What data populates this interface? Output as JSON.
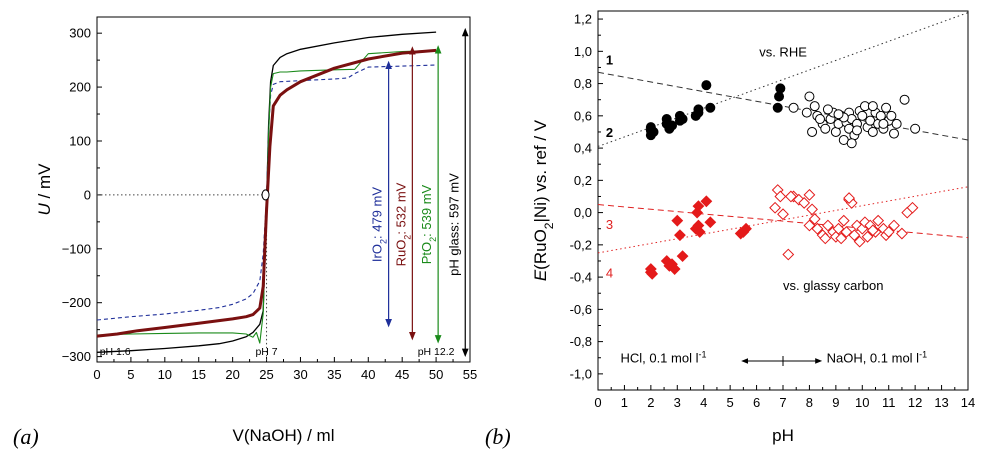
{
  "chart_data": [
    {
      "type": "line",
      "panel_label": "(a)",
      "xlabel": "V(NaOH) / ml",
      "ylabel_main": "U",
      "ylabel_unit": " / mV",
      "xlim": [
        0,
        55
      ],
      "ylim": [
        -310,
        330
      ],
      "xticks": [
        0,
        5,
        10,
        15,
        20,
        25,
        30,
        35,
        40,
        45,
        50,
        55
      ],
      "yticks": [
        -300,
        -200,
        -100,
        0,
        100,
        200,
        300
      ],
      "ytick_labels": [
        "−300",
        "−200",
        "−100",
        "0",
        "100",
        "200",
        "300"
      ],
      "annotations": [
        {
          "text": "pH 1.6",
          "x": 0.4,
          "y": -290
        },
        {
          "text": "pH 7",
          "x": 25,
          "y": -290
        },
        {
          "text": "pH 12.2",
          "x": 50,
          "y": -290
        }
      ],
      "dotted_reference": {
        "y": 0,
        "x_from": 0,
        "x_to": 25,
        "vertical_x": 25
      },
      "series": [
        {
          "name": "pH glass",
          "color": "#000000",
          "style": "solid",
          "width": 1.3,
          "x": [
            0,
            5,
            10,
            15,
            18,
            20,
            22,
            23,
            24,
            24.5,
            25,
            25.3,
            25.6,
            26,
            27,
            28,
            30,
            35,
            40,
            45,
            50
          ],
          "y": [
            -292,
            -289,
            -285,
            -280,
            -276,
            -271,
            -263,
            -255,
            -240,
            -215,
            -20,
            130,
            210,
            240,
            255,
            262,
            270,
            282,
            292,
            298,
            302
          ]
        },
        {
          "name": "IrO2",
          "color": "#1f2f9a",
          "style": "dashed",
          "width": 1.1,
          "x": [
            0,
            5,
            10,
            15,
            18,
            20,
            22,
            23,
            24,
            24.5,
            25,
            25.3,
            25.6,
            26,
            27,
            30,
            35,
            37,
            38,
            40,
            45,
            50
          ],
          "y": [
            -232,
            -226,
            -221,
            -214,
            -209,
            -203,
            -193,
            -183,
            -160,
            -110,
            -5,
            120,
            185,
            205,
            210,
            212,
            215,
            217,
            225,
            237,
            239,
            241
          ]
        },
        {
          "name": "PtO2",
          "color": "#1a8a1a",
          "style": "solid",
          "width": 1.1,
          "x": [
            0,
            5,
            10,
            15,
            20,
            22,
            23,
            23.5,
            24,
            24.5,
            25,
            25.3,
            25.6,
            26,
            27,
            28,
            30,
            35,
            38,
            40,
            45,
            50
          ],
          "y": [
            -260,
            -258,
            -257,
            -256,
            -256,
            -258,
            -264,
            -255,
            -275,
            -220,
            -20,
            110,
            200,
            225,
            228,
            228,
            230,
            232,
            233,
            262,
            266,
            268
          ]
        },
        {
          "name": "RuO2",
          "color": "#7a1010",
          "style": "solid",
          "width": 3,
          "x": [
            0,
            3,
            6,
            10,
            15,
            20,
            22,
            23,
            24,
            24.5,
            25,
            25.5,
            26,
            27,
            28,
            30,
            35,
            40,
            45,
            50
          ],
          "y": [
            -262,
            -258,
            -252,
            -246,
            -238,
            -230,
            -226,
            -222,
            -210,
            -170,
            -30,
            90,
            165,
            185,
            195,
            210,
            235,
            252,
            263,
            268
          ]
        }
      ],
      "arrows": [
        {
          "label_prefix": "IrO",
          "sub": "2",
          "label_suffix": ":  479  mV",
          "color": "#1f2f9a",
          "x": 43,
          "y_top": 241,
          "y_bottom": -238
        },
        {
          "label_prefix": "RuO",
          "sub": "2",
          "label_suffix": ": 532  mV",
          "color": "#7a1010",
          "x": 46.5,
          "y_top": 268,
          "y_bottom": -262
        },
        {
          "label_prefix": "PtO",
          "sub": "2",
          "label_suffix": ": 539  mV",
          "color": "#1a8a1a",
          "x": 50.3,
          "y_top": 270,
          "y_bottom": -268
        },
        {
          "label_prefix": "pH glass:  597  mV",
          "sub": "",
          "label_suffix": "",
          "color": "#000000",
          "x": 54.3,
          "y_top": 302,
          "y_bottom": -293
        }
      ]
    },
    {
      "type": "scatter",
      "panel_label": "(b)",
      "xlabel": "pH",
      "ylabel": "E(RuO2|Ni) vs. ref / V",
      "ylabel_parts": [
        "E",
        "(RuO",
        "2",
        "|Ni) vs. ref / V"
      ],
      "xlim": [
        0,
        14
      ],
      "ylim": [
        -1.1,
        1.25
      ],
      "xticks": [
        0,
        1,
        2,
        3,
        4,
        5,
        6,
        7,
        8,
        9,
        10,
        11,
        12,
        13,
        14
      ],
      "yticks": [
        -1.0,
        -0.8,
        -0.6,
        -0.4,
        -0.2,
        0.0,
        0.2,
        0.4,
        0.6,
        0.8,
        1.0,
        1.2
      ],
      "ytick_labels": [
        "-1,0",
        "-0,8",
        "-0,6",
        "-0,4",
        "-0,2",
        "0,0",
        "0,2",
        "0,4",
        "0,6",
        "0,8",
        "1,0",
        "1,2"
      ],
      "labels": [
        {
          "text": "vs. RHE",
          "x": 6.1,
          "y": 1.0,
          "color": "#000000"
        },
        {
          "text": "vs. glassy carbon",
          "x": 7.0,
          "y": -0.45,
          "color": "#000000"
        },
        {
          "text": "1",
          "x": 0.3,
          "y": 0.95,
          "color": "#000000"
        },
        {
          "text": "2",
          "x": 0.3,
          "y": 0.5,
          "color": "#000000"
        },
        {
          "text": "3",
          "x": 0.3,
          "y": -0.07,
          "color": "#e02020"
        },
        {
          "text": "4",
          "x": 0.3,
          "y": -0.37,
          "color": "#e02020"
        }
      ],
      "bottom_labels": {
        "left": "HCl, 0.1 mol l",
        "right": "NaOH, 0.1 mol l",
        "sup": "-1"
      },
      "lines": [
        {
          "name": "1",
          "color": "#333333",
          "dash": "1.5,3",
          "x": [
            0,
            14
          ],
          "y": [
            0.41,
            1.24
          ]
        },
        {
          "name": "2",
          "color": "#333333",
          "dash": "6,4",
          "x": [
            0,
            14
          ],
          "y": [
            0.87,
            0.45
          ]
        },
        {
          "name": "3",
          "color": "#e02020",
          "dash": "6,4",
          "x": [
            0,
            14
          ],
          "y": [
            0.05,
            -0.155
          ]
        },
        {
          "name": "4",
          "color": "#e02020",
          "dash": "1.5,3",
          "x": [
            0,
            14
          ],
          "y": [
            -0.25,
            0.16
          ]
        }
      ],
      "series": [
        {
          "name": "acidic vs. RHE",
          "marker": "filled-circle",
          "color": "#000000",
          "x": [
            2.0,
            2.0,
            2.0,
            2.1,
            2.6,
            2.6,
            2.7,
            2.8,
            3.1,
            3.1,
            3.2,
            3.7,
            3.8,
            3.8,
            4.1,
            4.25,
            6.8,
            6.85,
            6.9
          ],
          "y": [
            0.48,
            0.51,
            0.53,
            0.5,
            0.55,
            0.58,
            0.52,
            0.54,
            0.57,
            0.6,
            0.58,
            0.6,
            0.62,
            0.64,
            0.79,
            0.65,
            0.65,
            0.72,
            0.77
          ]
        },
        {
          "name": "alkaline vs. RHE",
          "marker": "open-circle",
          "color": "#000000",
          "x": [
            7.4,
            7.9,
            8.0,
            8.2,
            8.3,
            8.5,
            8.6,
            8.8,
            8.9,
            9.0,
            9.1,
            9.2,
            9.3,
            9.4,
            9.5,
            9.5,
            9.6,
            9.7,
            9.8,
            9.9,
            10.0,
            10.1,
            10.2,
            10.3,
            10.4,
            10.5,
            10.6,
            10.7,
            10.8,
            10.9,
            11.0,
            11.1,
            11.3,
            11.6,
            12.0,
            8.1,
            8.7,
            9.3,
            9.8,
            10.4,
            11.2,
            9.6,
            8.4,
            10.8,
            9.1
          ],
          "y": [
            0.65,
            0.62,
            0.72,
            0.66,
            0.6,
            0.55,
            0.52,
            0.58,
            0.62,
            0.5,
            0.55,
            0.6,
            0.45,
            0.56,
            0.62,
            0.52,
            0.58,
            0.48,
            0.55,
            0.63,
            0.6,
            0.66,
            0.53,
            0.57,
            0.5,
            0.62,
            0.55,
            0.6,
            0.52,
            0.65,
            0.57,
            0.6,
            0.55,
            0.7,
            0.52,
            0.5,
            0.64,
            0.59,
            0.51,
            0.66,
            0.49,
            0.43,
            0.58,
            0.55,
            0.61
          ]
        },
        {
          "name": "acidic vs. glassy carbon",
          "marker": "filled-diamond",
          "color": "#e41a1a",
          "x": [
            2.0,
            2.0,
            2.05,
            2.6,
            2.7,
            2.8,
            2.9,
            3.0,
            3.1,
            3.2,
            3.7,
            3.75,
            3.8,
            3.8,
            3.85,
            4.1,
            4.25,
            5.4,
            5.6,
            5.5
          ],
          "y": [
            -0.35,
            -0.37,
            -0.38,
            -0.3,
            -0.33,
            -0.32,
            -0.35,
            -0.05,
            -0.14,
            -0.27,
            -0.1,
            0.0,
            0.04,
            -0.08,
            -0.12,
            0.07,
            -0.06,
            -0.13,
            -0.1,
            -0.12
          ]
        },
        {
          "name": "alkaline vs. glassy carbon",
          "marker": "open-diamond",
          "color": "#e41a1a",
          "x": [
            6.7,
            6.8,
            6.9,
            7.0,
            7.2,
            7.4,
            7.6,
            7.8,
            8.0,
            8.1,
            8.2,
            8.3,
            8.5,
            8.7,
            8.9,
            9.0,
            9.1,
            9.2,
            9.3,
            9.4,
            9.5,
            9.6,
            9.7,
            9.8,
            9.9,
            10.0,
            10.1,
            10.2,
            10.3,
            10.5,
            10.6,
            10.8,
            10.9,
            11.0,
            11.2,
            11.5,
            11.7,
            11.9,
            7.3,
            8.0,
            9.5,
            10.4,
            8.6
          ],
          "y": [
            0.03,
            0.14,
            0.1,
            -0.01,
            -0.26,
            0.1,
            0.08,
            0.06,
            0.11,
            0.02,
            -0.04,
            -0.1,
            -0.14,
            -0.08,
            -0.12,
            -0.15,
            -0.1,
            -0.16,
            -0.05,
            -0.12,
            0.08,
            0.06,
            -0.14,
            -0.08,
            -0.18,
            -0.1,
            -0.06,
            -0.15,
            -0.08,
            -0.12,
            -0.05,
            -0.1,
            -0.14,
            -0.12,
            -0.08,
            -0.13,
            0.0,
            0.03,
            0.1,
            -0.08,
            0.09,
            -0.11,
            -0.16
          ]
        }
      ]
    }
  ]
}
